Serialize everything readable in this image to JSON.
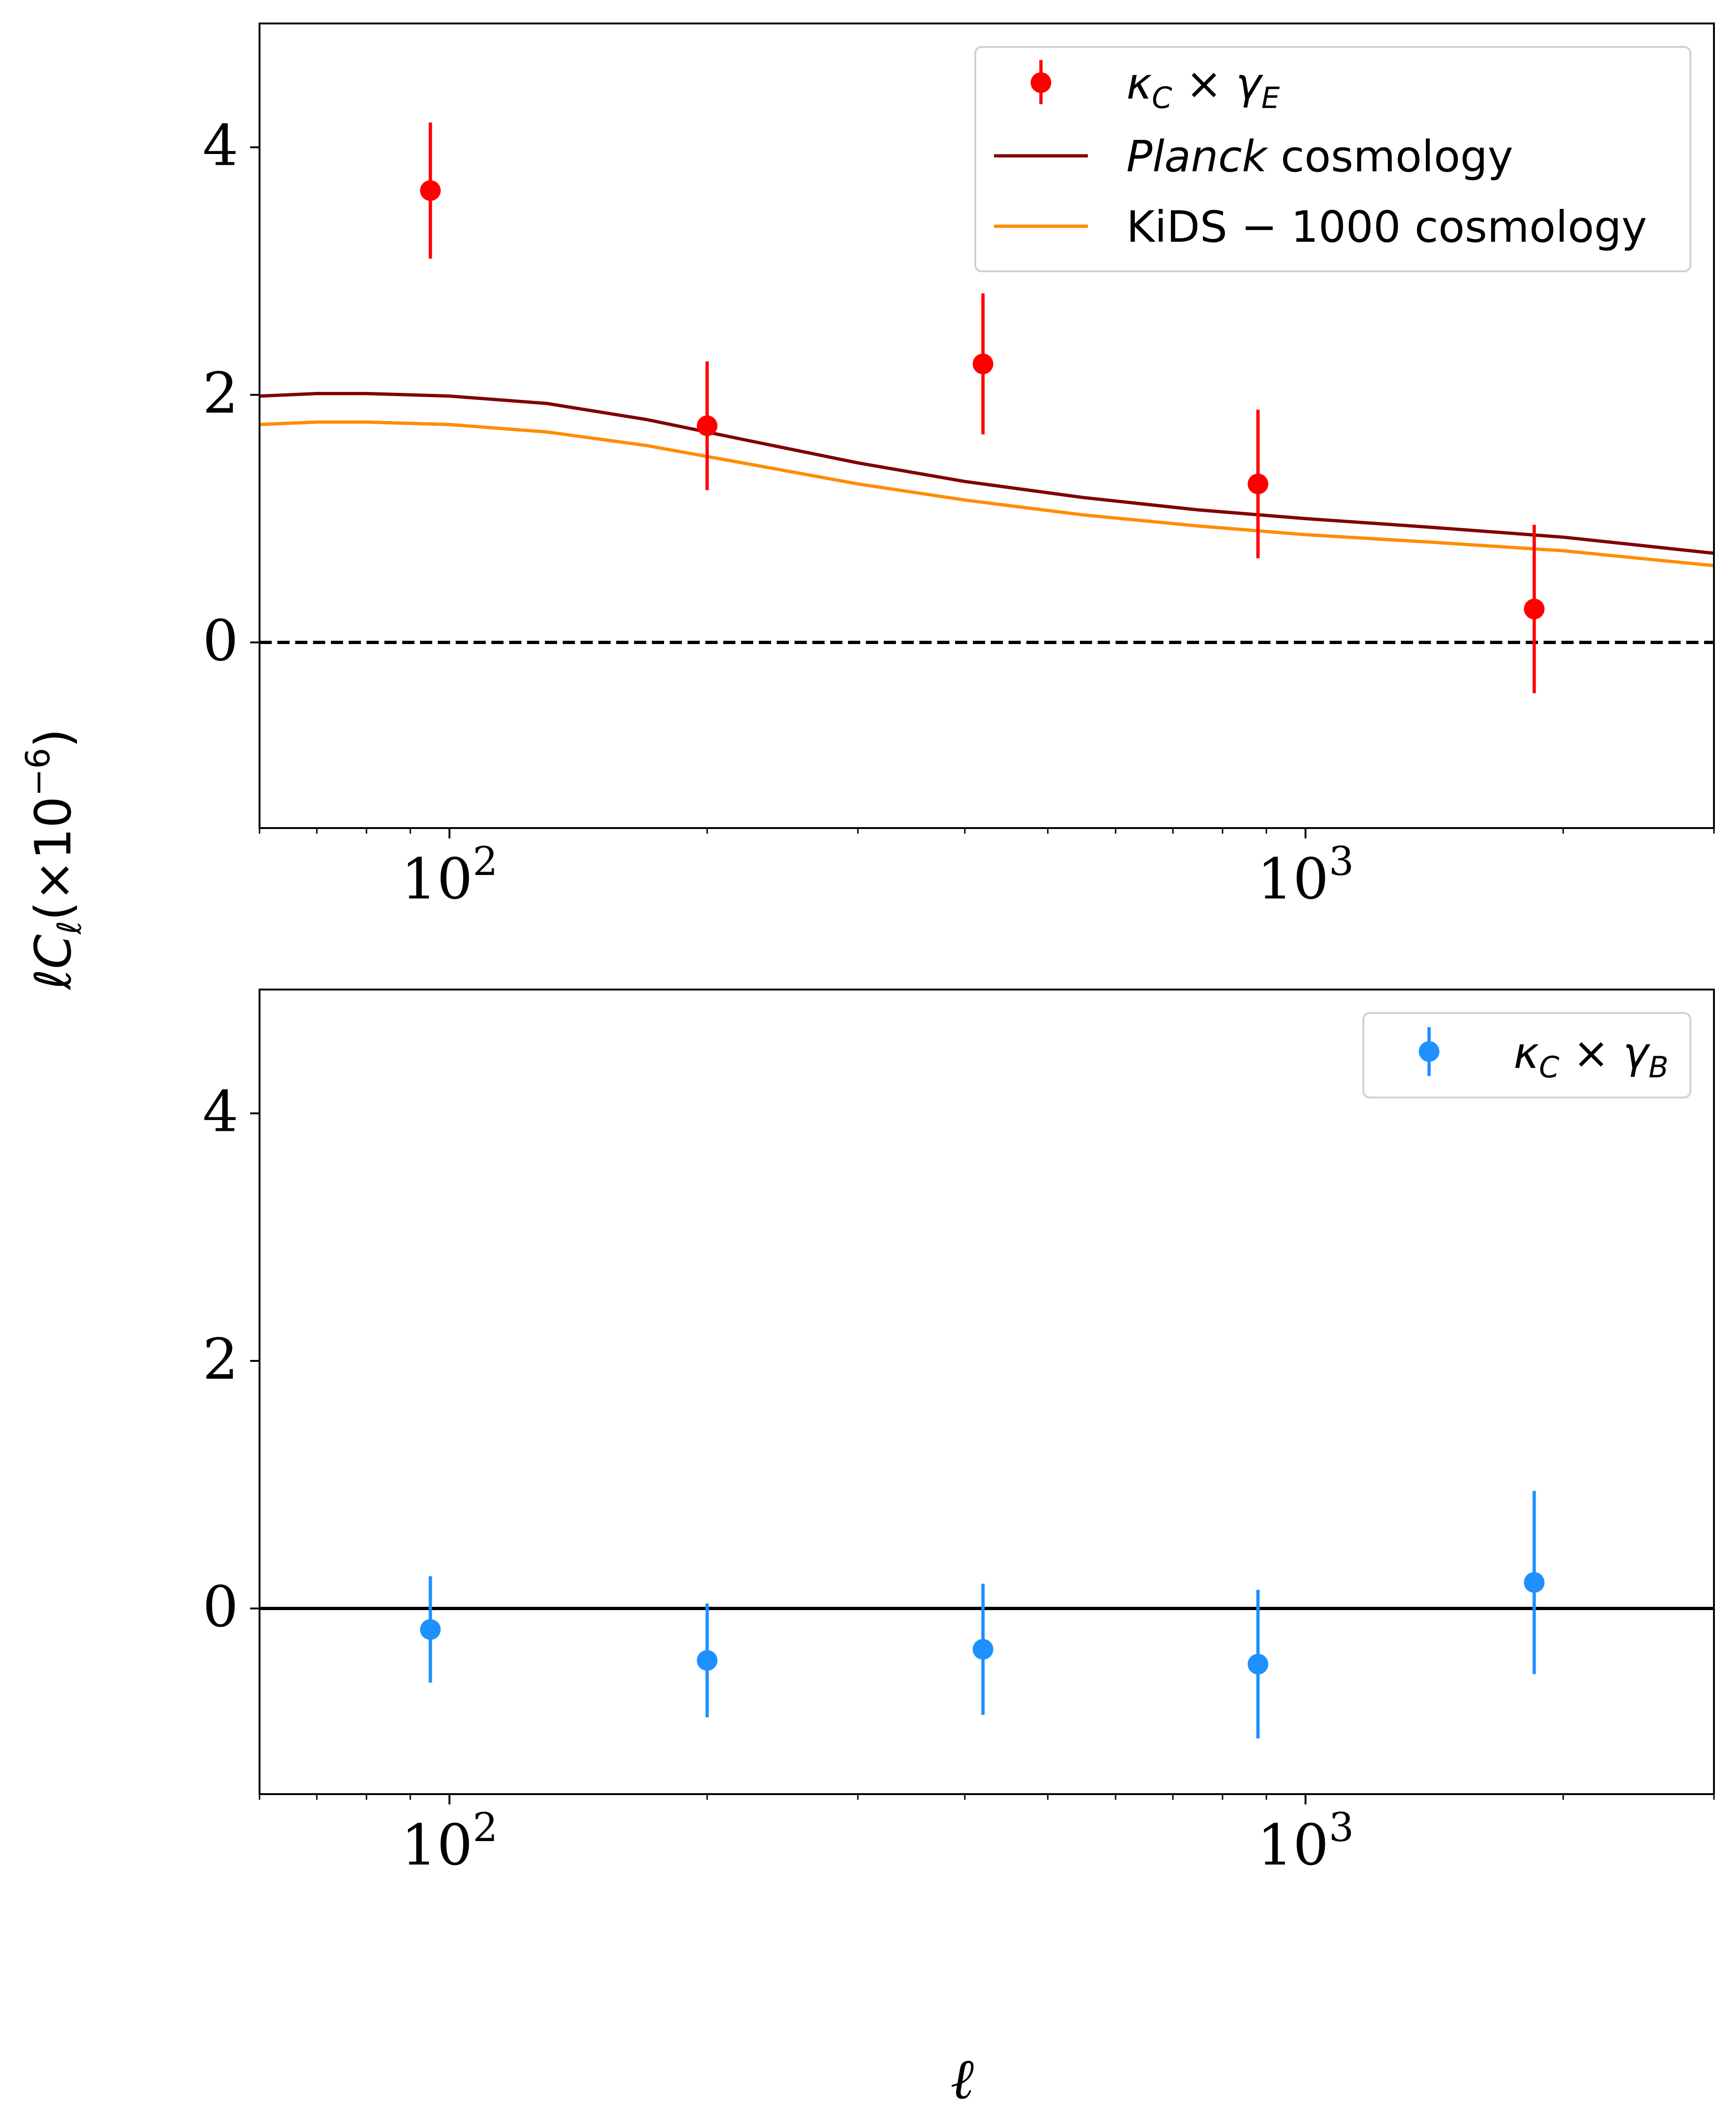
{
  "figure": {
    "ylabel": "ℓC_ℓ(×10⁻⁶)",
    "ylabel_main": "ℓC",
    "ylabel_sub": "ℓ",
    "ylabel_paren": "(×10",
    "ylabel_exp": "−6",
    "ylabel_close": ")",
    "xlabel": "ℓ"
  },
  "chart_data": [
    {
      "type": "scatter",
      "panel": "top",
      "xscale": "log",
      "xlim": [
        60,
        3000
      ],
      "ylim": [
        -1.5,
        5.0
      ],
      "yticks": [
        0,
        2,
        4
      ],
      "ytick_labels": [
        "0",
        "2",
        "4"
      ],
      "xticks": [
        100,
        1000
      ],
      "xtick_labels": [
        {
          "base": "10",
          "exp": "2"
        },
        {
          "base": "10",
          "exp": "3"
        }
      ],
      "reference_line": {
        "y": 0,
        "style": "dashed",
        "color": "#000000"
      },
      "legend_position": "top-right",
      "series": [
        {
          "name": "κ_C × γ_E",
          "legend_main": "κ",
          "legend_sub1": "C",
          "legend_mid": " × γ",
          "legend_sub2": "E",
          "kind": "errorbar",
          "color": "#ff0000",
          "x": [
            95,
            200,
            420,
            880,
            1850
          ],
          "y": [
            3.65,
            1.75,
            2.25,
            1.28,
            0.27
          ],
          "yerr": [
            0.55,
            0.52,
            0.57,
            0.6,
            0.68
          ]
        },
        {
          "name": "Planck cosmology",
          "legend_italic": "Planck",
          "legend_rest": " cosmology",
          "kind": "line",
          "color": "#800000",
          "x": [
            60,
            70,
            80,
            100,
            130,
            170,
            220,
            300,
            400,
            550,
            750,
            1000,
            1400,
            2000,
            3000
          ],
          "y": [
            1.99,
            2.01,
            2.01,
            1.99,
            1.93,
            1.8,
            1.64,
            1.45,
            1.3,
            1.17,
            1.07,
            1.0,
            0.93,
            0.85,
            0.72
          ]
        },
        {
          "name": "KiDS − 1000 cosmology",
          "legend_text": "KiDS − 1000 cosmology",
          "kind": "line",
          "color": "#ff8c00",
          "x": [
            60,
            70,
            80,
            100,
            130,
            170,
            220,
            300,
            400,
            550,
            750,
            1000,
            1400,
            2000,
            3000
          ],
          "y": [
            1.76,
            1.78,
            1.78,
            1.76,
            1.7,
            1.59,
            1.45,
            1.28,
            1.15,
            1.03,
            0.94,
            0.87,
            0.81,
            0.74,
            0.62
          ]
        }
      ]
    },
    {
      "type": "scatter",
      "panel": "bottom",
      "xscale": "log",
      "xlim": [
        60,
        3000
      ],
      "ylim": [
        -1.5,
        5.0
      ],
      "yticks": [
        0,
        2,
        4
      ],
      "ytick_labels": [
        "0",
        "2",
        "4"
      ],
      "xticks": [
        100,
        1000
      ],
      "xtick_labels": [
        {
          "base": "10",
          "exp": "2"
        },
        {
          "base": "10",
          "exp": "3"
        }
      ],
      "reference_line": {
        "y": 0,
        "style": "solid",
        "color": "#000000"
      },
      "legend_position": "top-right",
      "series": [
        {
          "name": "κ_C × γ_B",
          "legend_main": "κ",
          "legend_sub1": "C",
          "legend_mid": " × γ",
          "legend_sub2": "B",
          "kind": "errorbar",
          "color": "#1e90ff",
          "x": [
            95,
            200,
            420,
            880,
            1850
          ],
          "y": [
            -0.17,
            -0.42,
            -0.33,
            -0.45,
            0.21
          ],
          "yerr": [
            0.43,
            0.46,
            0.53,
            0.6,
            0.74
          ]
        }
      ]
    }
  ]
}
